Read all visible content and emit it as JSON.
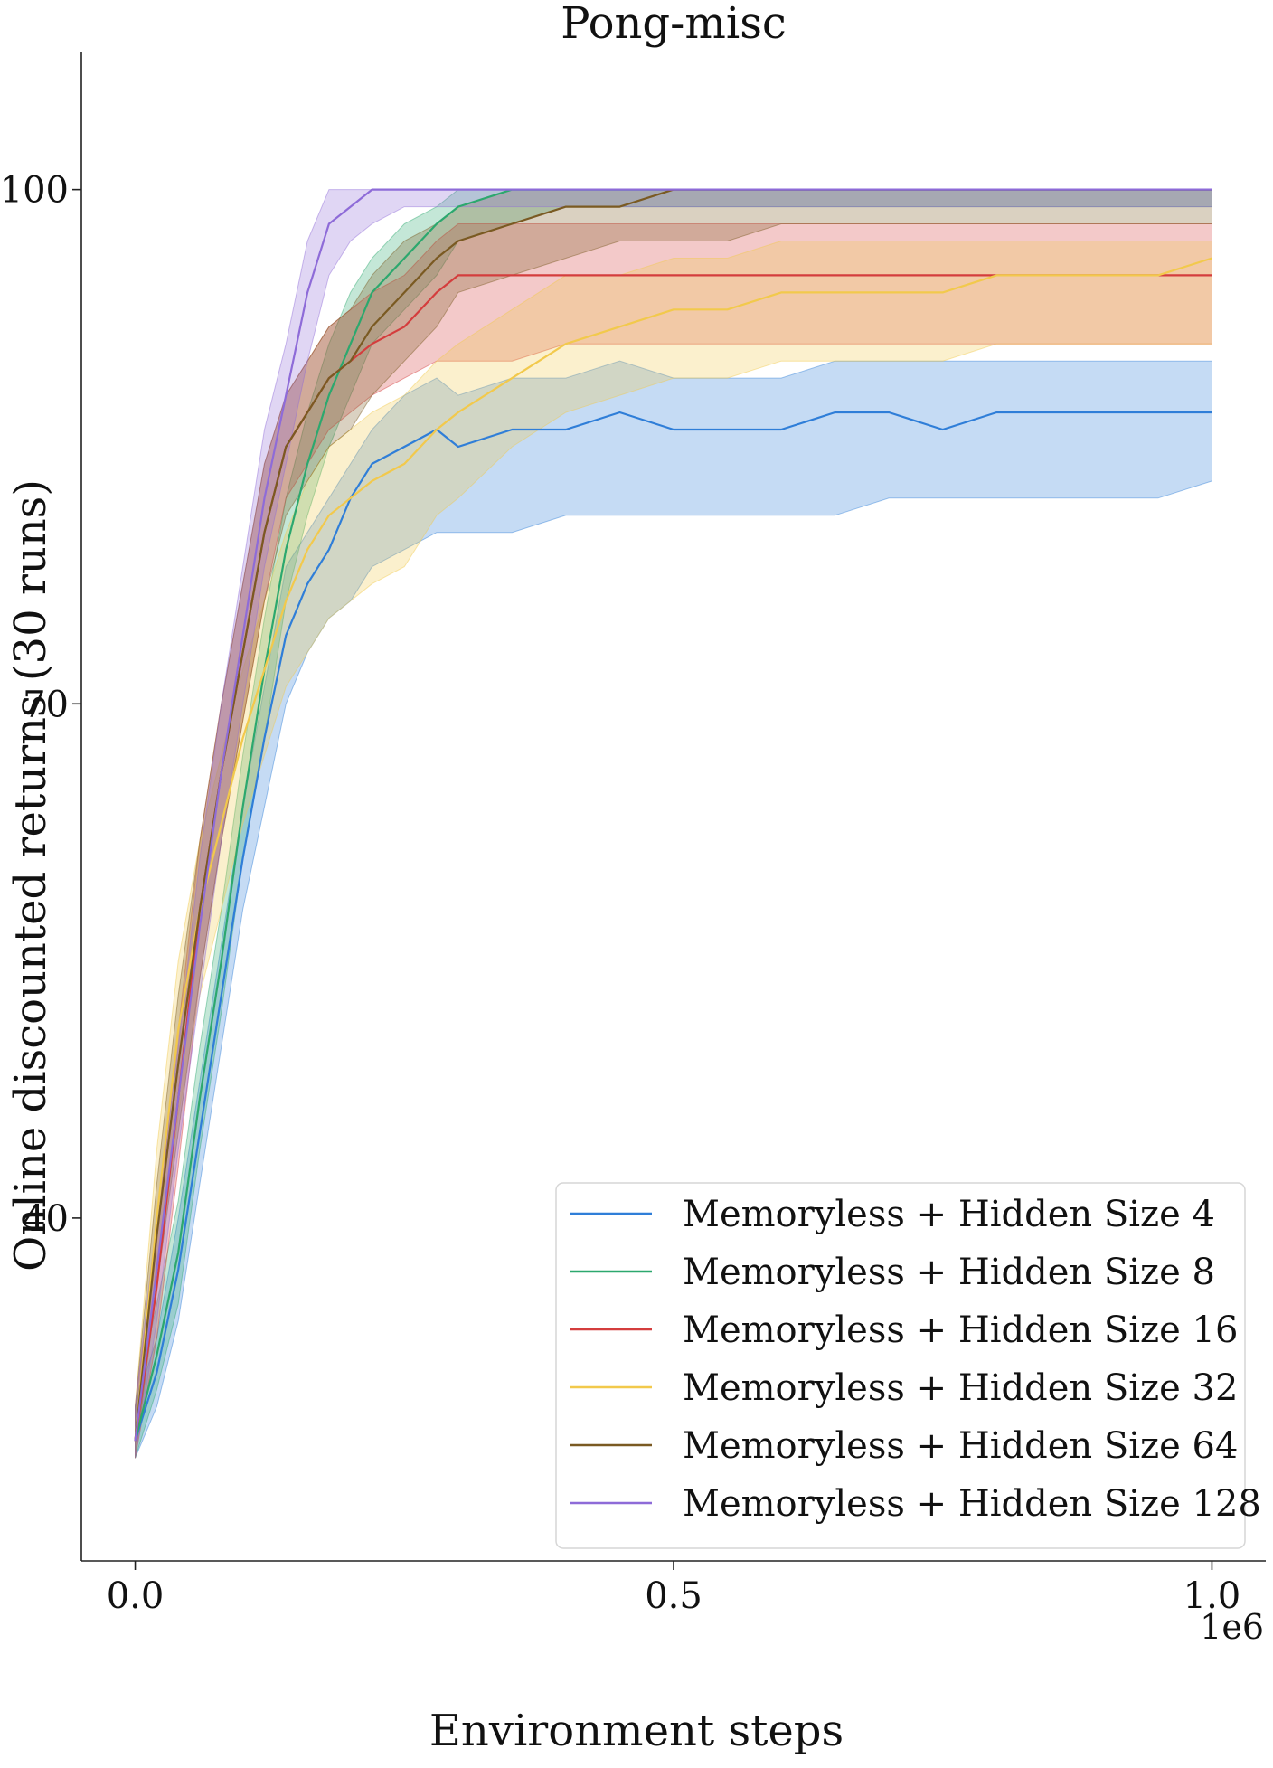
{
  "chart_data": {
    "type": "line",
    "title": "Pong-misc",
    "xlabel": "Environment steps",
    "ylabel": "Online discounted returns (30 runs)",
    "x_offset_label": "1e6",
    "xlim": [
      -0.05,
      1.05
    ],
    "ylim": [
      20,
      108
    ],
    "xticks": [
      0.0,
      0.5,
      1.0
    ],
    "xtick_labels": [
      "0.0",
      "0.5",
      "1.0"
    ],
    "yticks": [
      40,
      70,
      100
    ],
    "ytick_labels": [
      "40",
      "70",
      "100"
    ],
    "grid": false,
    "legend_position": "lower-right",
    "x": [
      0.0,
      0.02,
      0.04,
      0.06,
      0.08,
      0.1,
      0.12,
      0.14,
      0.16,
      0.18,
      0.2,
      0.22,
      0.25,
      0.28,
      0.3,
      0.35,
      0.4,
      0.45,
      0.5,
      0.55,
      0.6,
      0.65,
      0.7,
      0.75,
      0.8,
      0.85,
      0.9,
      0.95,
      1.0
    ],
    "series": [
      {
        "name": "Memoryless + Hidden Size 4",
        "color": "#2f7ed8",
        "mean": [
          27,
          31,
          37,
          45,
          53,
          61,
          68,
          74,
          77,
          79,
          82,
          84,
          85,
          86,
          85,
          86,
          86,
          87,
          86,
          86,
          86,
          87,
          87,
          86,
          87,
          87,
          87,
          87,
          87
        ],
        "lower": [
          26,
          29,
          34,
          42,
          50,
          58,
          64,
          70,
          73,
          75,
          76,
          78,
          79,
          80,
          80,
          80,
          81,
          81,
          81,
          81,
          81,
          81,
          82,
          82,
          82,
          82,
          82,
          82,
          83
        ],
        "upper": [
          29,
          33,
          40,
          48,
          56,
          64,
          71,
          78,
          80,
          82,
          84,
          86,
          88,
          89,
          88,
          89,
          89,
          90,
          89,
          89,
          89,
          90,
          90,
          90,
          90,
          90,
          90,
          90,
          90
        ]
      },
      {
        "name": "Memoryless + Hidden Size 8",
        "color": "#2ca86e",
        "mean": [
          27,
          32,
          38,
          47,
          55,
          64,
          72,
          79,
          84,
          88,
          91,
          94,
          96,
          98,
          99,
          100,
          100,
          100,
          100,
          100,
          100,
          100,
          100,
          100,
          100,
          100,
          100,
          100,
          100
        ],
        "lower": [
          26,
          30,
          35,
          44,
          52,
          61,
          68,
          76,
          81,
          85,
          88,
          91,
          93,
          95,
          97,
          98,
          99,
          99,
          99,
          99,
          99,
          99,
          99,
          99,
          99,
          99,
          99,
          99,
          99
        ],
        "upper": [
          29,
          35,
          41,
          50,
          58,
          67,
          75,
          82,
          87,
          91,
          94,
          96,
          98,
          99,
          100,
          100,
          100,
          100,
          100,
          100,
          100,
          100,
          100,
          100,
          100,
          100,
          100,
          100,
          100
        ]
      },
      {
        "name": "Memoryless + Hidden Size 16",
        "color": "#d43d3d",
        "mean": [
          27,
          36,
          47,
          58,
          66,
          73,
          80,
          85,
          87,
          89,
          90,
          91,
          92,
          94,
          95,
          95,
          95,
          95,
          95,
          95,
          95,
          95,
          95,
          95,
          95,
          95,
          95,
          95,
          95
        ],
        "lower": [
          26,
          33,
          43,
          54,
          62,
          69,
          76,
          82,
          84,
          86,
          87,
          88,
          89,
          90,
          90,
          90,
          91,
          91,
          91,
          91,
          91,
          91,
          91,
          91,
          91,
          91,
          91,
          91,
          91
        ],
        "upper": [
          29,
          39,
          51,
          62,
          70,
          77,
          84,
          88,
          90,
          92,
          93,
          94,
          95,
          97,
          98,
          98,
          98,
          98,
          98,
          98,
          98,
          98,
          98,
          98,
          98,
          98,
          98,
          98,
          98
        ]
      },
      {
        "name": "Memoryless + Hidden Size 32",
        "color": "#f2c94c",
        "mean": [
          27,
          40,
          51,
          58,
          63,
          68,
          72,
          76,
          79,
          81,
          82,
          83,
          84,
          86,
          87,
          89,
          91,
          92,
          93,
          93,
          94,
          94,
          94,
          94,
          95,
          95,
          95,
          95,
          96
        ],
        "lower": [
          26,
          36,
          46,
          53,
          58,
          63,
          67,
          71,
          73,
          75,
          76,
          77,
          78,
          81,
          82,
          85,
          87,
          88,
          89,
          89,
          90,
          90,
          90,
          90,
          91,
          91,
          91,
          91,
          91
        ],
        "upper": [
          29,
          44,
          55,
          62,
          67,
          72,
          76,
          80,
          83,
          85,
          86,
          87,
          88,
          90,
          91,
          93,
          95,
          95,
          96,
          96,
          97,
          97,
          97,
          97,
          97,
          97,
          97,
          97,
          97
        ]
      },
      {
        "name": "Memoryless + Hidden Size 64",
        "color": "#7a5a22",
        "mean": [
          27,
          39,
          49,
          58,
          66,
          73,
          80,
          85,
          87,
          89,
          90,
          92,
          94,
          96,
          97,
          98,
          99,
          99,
          100,
          100,
          100,
          100,
          100,
          100,
          100,
          100,
          100,
          100,
          100
        ],
        "lower": [
          26,
          36,
          45,
          54,
          62,
          69,
          76,
          81,
          83,
          85,
          86,
          88,
          90,
          92,
          94,
          95,
          96,
          97,
          97,
          97,
          98,
          98,
          98,
          98,
          98,
          98,
          98,
          98,
          98
        ],
        "upper": [
          29,
          42,
          53,
          62,
          70,
          77,
          84,
          88,
          90,
          92,
          93,
          95,
          97,
          98,
          99,
          100,
          100,
          100,
          100,
          100,
          100,
          100,
          100,
          100,
          100,
          100,
          100,
          100,
          100
        ]
      },
      {
        "name": "Memoryless + Hidden Size 128",
        "color": "#8e6bd8",
        "mean": [
          27,
          37,
          47,
          57,
          66,
          74,
          82,
          88,
          94,
          98,
          99,
          100,
          100,
          100,
          100,
          100,
          100,
          100,
          100,
          100,
          100,
          100,
          100,
          100,
          100,
          100,
          100,
          100,
          100
        ],
        "lower": [
          26,
          34,
          44,
          53,
          62,
          70,
          78,
          84,
          90,
          95,
          97,
          98,
          99,
          99,
          99,
          99,
          99,
          99,
          99,
          99,
          99,
          99,
          99,
          99,
          99,
          99,
          99,
          99,
          99
        ],
        "upper": [
          29,
          40,
          50,
          61,
          70,
          78,
          86,
          91,
          97,
          100,
          100,
          100,
          100,
          100,
          100,
          100,
          100,
          100,
          100,
          100,
          100,
          100,
          100,
          100,
          100,
          100,
          100,
          100,
          100
        ]
      }
    ]
  }
}
